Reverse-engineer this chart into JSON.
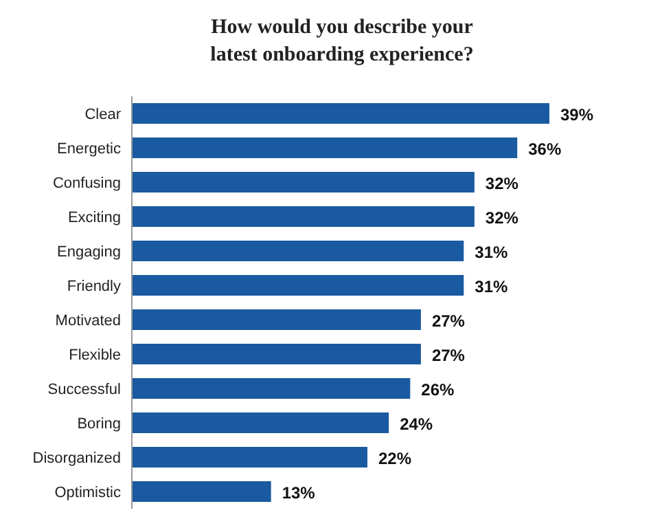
{
  "chart_data": {
    "type": "bar",
    "orientation": "horizontal",
    "title": "How would you describe your latest onboarding experience?",
    "categories": [
      "Clear",
      "Energetic",
      "Confusing",
      "Exciting",
      "Engaging",
      "Friendly",
      "Motivated",
      "Flexible",
      "Successful",
      "Boring",
      "Disorganized",
      "Optimistic"
    ],
    "values": [
      39,
      36,
      32,
      32,
      31,
      31,
      27,
      27,
      26,
      24,
      22,
      13
    ],
    "value_labels": [
      "39%",
      "36%",
      "32%",
      "32%",
      "31%",
      "31%",
      "27%",
      "27%",
      "26%",
      "24%",
      "22%",
      "13%"
    ],
    "color": "#1a5aa0",
    "tick_labels": "y"
  }
}
